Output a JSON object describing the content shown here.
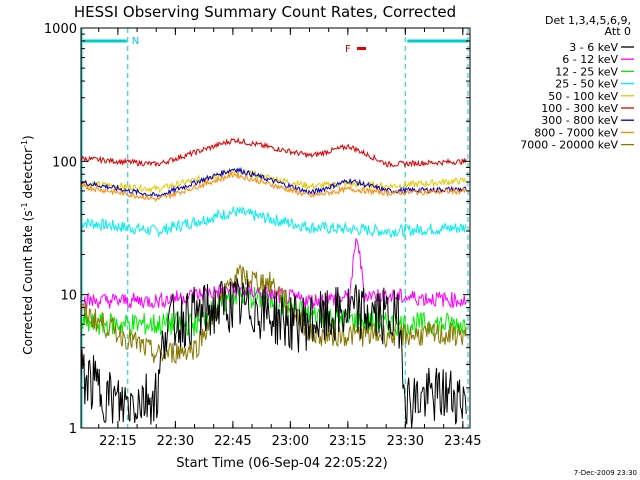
{
  "chart_data": {
    "type": "line",
    "title": "HESSI Observing Summary Count Rates, Corrected",
    "xlabel": "Start Time (06-Sep-04 22:05:22)",
    "ylabel_main": "Corrected Count Rate (s",
    "ylabel_exp1": "-1",
    "ylabel_mid": " detector",
    "ylabel_exp2": "-1",
    "ylabel_end": ")",
    "y_scale": "log",
    "ylim": [
      1,
      1000
    ],
    "xlim_minutes_after_start": [
      0,
      101.5
    ],
    "x_tick_labels": [
      "22:15",
      "22:30",
      "22:45",
      "23:00",
      "23:15",
      "23:30",
      "23:45"
    ],
    "x_tick_minutes_after_start": [
      9.63,
      24.63,
      39.63,
      54.63,
      69.63,
      84.63,
      99.63
    ],
    "y_tick_labels": [
      "1",
      "10",
      "100",
      "1000"
    ],
    "y_tick_values": [
      1,
      10,
      100,
      1000
    ],
    "legend_header": [
      "Det 1,3,4,5,6,9,",
      "Att 0"
    ],
    "legend_placement": "right",
    "series": [
      {
        "name": "3 - 6 keV",
        "color": "#000000",
        "values": [
          [
            0,
            2.5
          ],
          [
            10,
            1.5
          ],
          [
            20,
            1.8
          ],
          [
            22,
            6
          ],
          [
            30,
            7
          ],
          [
            39,
            8.5
          ],
          [
            45,
            8
          ],
          [
            55,
            6
          ],
          [
            64,
            6.5
          ],
          [
            70,
            7.5
          ],
          [
            78,
            7
          ],
          [
            83,
            6.5
          ],
          [
            85,
            1.6
          ],
          [
            95,
            1.8
          ],
          [
            101,
            1.7
          ]
        ]
      },
      {
        "name": "6 - 12 keV",
        "color": "#ff00ff",
        "values": [
          [
            0,
            9
          ],
          [
            20,
            9
          ],
          [
            40,
            11
          ],
          [
            60,
            9
          ],
          [
            70,
            9.5
          ],
          [
            72,
            28
          ],
          [
            74,
            10
          ],
          [
            101,
            9
          ]
        ]
      },
      {
        "name": "12 - 25 keV",
        "color": "#00ee00",
        "values": [
          [
            0,
            6
          ],
          [
            20,
            6
          ],
          [
            30,
            6
          ],
          [
            40,
            10
          ],
          [
            50,
            9
          ],
          [
            60,
            7
          ],
          [
            80,
            6
          ],
          [
            101,
            6
          ]
        ]
      },
      {
        "name": "25 - 50 keV",
        "color": "#00eeee",
        "values": [
          [
            0,
            35
          ],
          [
            20,
            30
          ],
          [
            40,
            42
          ],
          [
            60,
            32
          ],
          [
            80,
            30
          ],
          [
            101,
            32
          ]
        ]
      },
      {
        "name": "50 - 100 keV",
        "color": "#e6c800",
        "values": [
          [
            0,
            68
          ],
          [
            20,
            62
          ],
          [
            40,
            85
          ],
          [
            60,
            65
          ],
          [
            70,
            68
          ],
          [
            80,
            65
          ],
          [
            101,
            72
          ]
        ]
      },
      {
        "name": "100 - 300 keV",
        "color": "#dd0000",
        "values": [
          [
            0,
            105
          ],
          [
            20,
            95
          ],
          [
            40,
            145
          ],
          [
            60,
            110
          ],
          [
            70,
            130
          ],
          [
            80,
            95
          ],
          [
            101,
            100
          ]
        ]
      },
      {
        "name": "300 - 800 keV",
        "color": "#0000cc",
        "values": [
          [
            0,
            70
          ],
          [
            20,
            55
          ],
          [
            40,
            88
          ],
          [
            60,
            58
          ],
          [
            70,
            72
          ],
          [
            80,
            60
          ],
          [
            101,
            62
          ]
        ]
      },
      {
        "name": "800 - 7000 keV",
        "color": "#ff8800",
        "values": [
          [
            0,
            65
          ],
          [
            20,
            52
          ],
          [
            40,
            80
          ],
          [
            60,
            55
          ],
          [
            70,
            62
          ],
          [
            80,
            58
          ],
          [
            101,
            60
          ]
        ]
      },
      {
        "name": "7000 - 20000 keV",
        "color": "#887700",
        "values": [
          [
            0,
            7.5
          ],
          [
            20,
            3.5
          ],
          [
            30,
            4
          ],
          [
            40,
            14
          ],
          [
            50,
            12
          ],
          [
            60,
            5
          ],
          [
            80,
            5
          ],
          [
            101,
            5
          ]
        ]
      }
    ],
    "annotations": [
      {
        "text": "N",
        "color": "#00cccc"
      },
      {
        "text": "F",
        "color": "#dd0000"
      }
    ],
    "footer_date": "7-Dec-2009 23:30",
    "colors": {
      "night_marker": "#00cccc",
      "flare_marker": "#dd0000",
      "axis": "#000000",
      "background": "#ffffff"
    }
  }
}
